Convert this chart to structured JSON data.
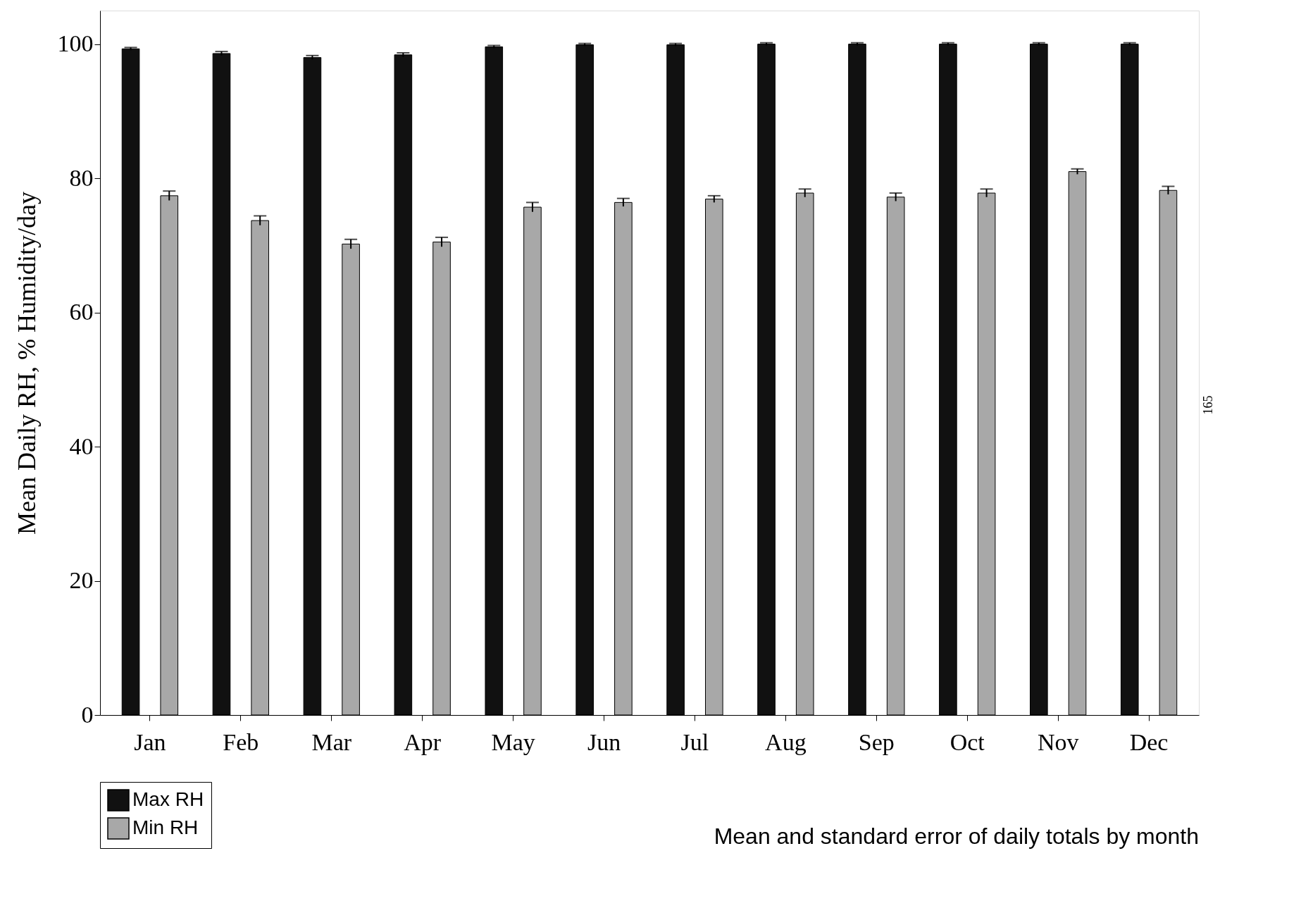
{
  "chart_data": {
    "type": "bar",
    "ylabel": "Mean Daily RH, % Humidity/day",
    "categories": [
      "Jan",
      "Feb",
      "Mar",
      "Apr",
      "May",
      "Jun",
      "Jul",
      "Aug",
      "Sep",
      "Oct",
      "Nov",
      "Dec"
    ],
    "series": [
      {
        "name": "Max RH",
        "color": "#111111",
        "values": [
          99.3,
          98.6,
          98.0,
          98.4,
          99.6,
          99.9,
          99.9,
          100.0,
          100.0,
          100.0,
          100.0,
          100.0
        ],
        "errors": [
          0.2,
          0.3,
          0.3,
          0.3,
          0.2,
          0.2,
          0.2,
          0.2,
          0.2,
          0.2,
          0.2,
          0.2
        ]
      },
      {
        "name": "Min RH",
        "color": "#a8a8a8",
        "values": [
          77.4,
          73.7,
          70.2,
          70.5,
          75.7,
          76.4,
          76.9,
          77.8,
          77.2,
          77.8,
          81.0,
          78.2
        ],
        "errors": [
          0.7,
          0.7,
          0.7,
          0.7,
          0.7,
          0.6,
          0.5,
          0.6,
          0.6,
          0.6,
          0.4,
          0.6
        ]
      }
    ],
    "ylim": [
      0,
      105
    ],
    "yticks": [
      0,
      20,
      40,
      60,
      80,
      100
    ],
    "grid": false,
    "legend": "bottom left",
    "annotations": [
      "Mean and standard error of daily totals by month",
      "165"
    ]
  }
}
